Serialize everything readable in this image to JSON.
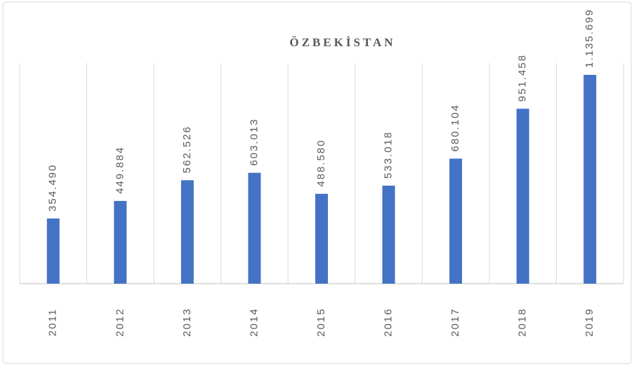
{
  "chart_data": {
    "type": "bar",
    "title": "ÖZBEKİSTAN",
    "categories": [
      "2011",
      "2012",
      "2013",
      "2014",
      "2015",
      "2016",
      "2017",
      "2018",
      "2019"
    ],
    "values": [
      354490,
      449884,
      562526,
      603013,
      488580,
      533018,
      680104,
      951458,
      1135699
    ],
    "value_labels": [
      "354.490",
      "449.884",
      "562.526",
      "603.013",
      "488.580",
      "533.018",
      "680.104",
      "951.458",
      "1.135.699"
    ],
    "color": "#4472c4",
    "ylim": [
      0,
      1200000
    ],
    "grid": true
  }
}
